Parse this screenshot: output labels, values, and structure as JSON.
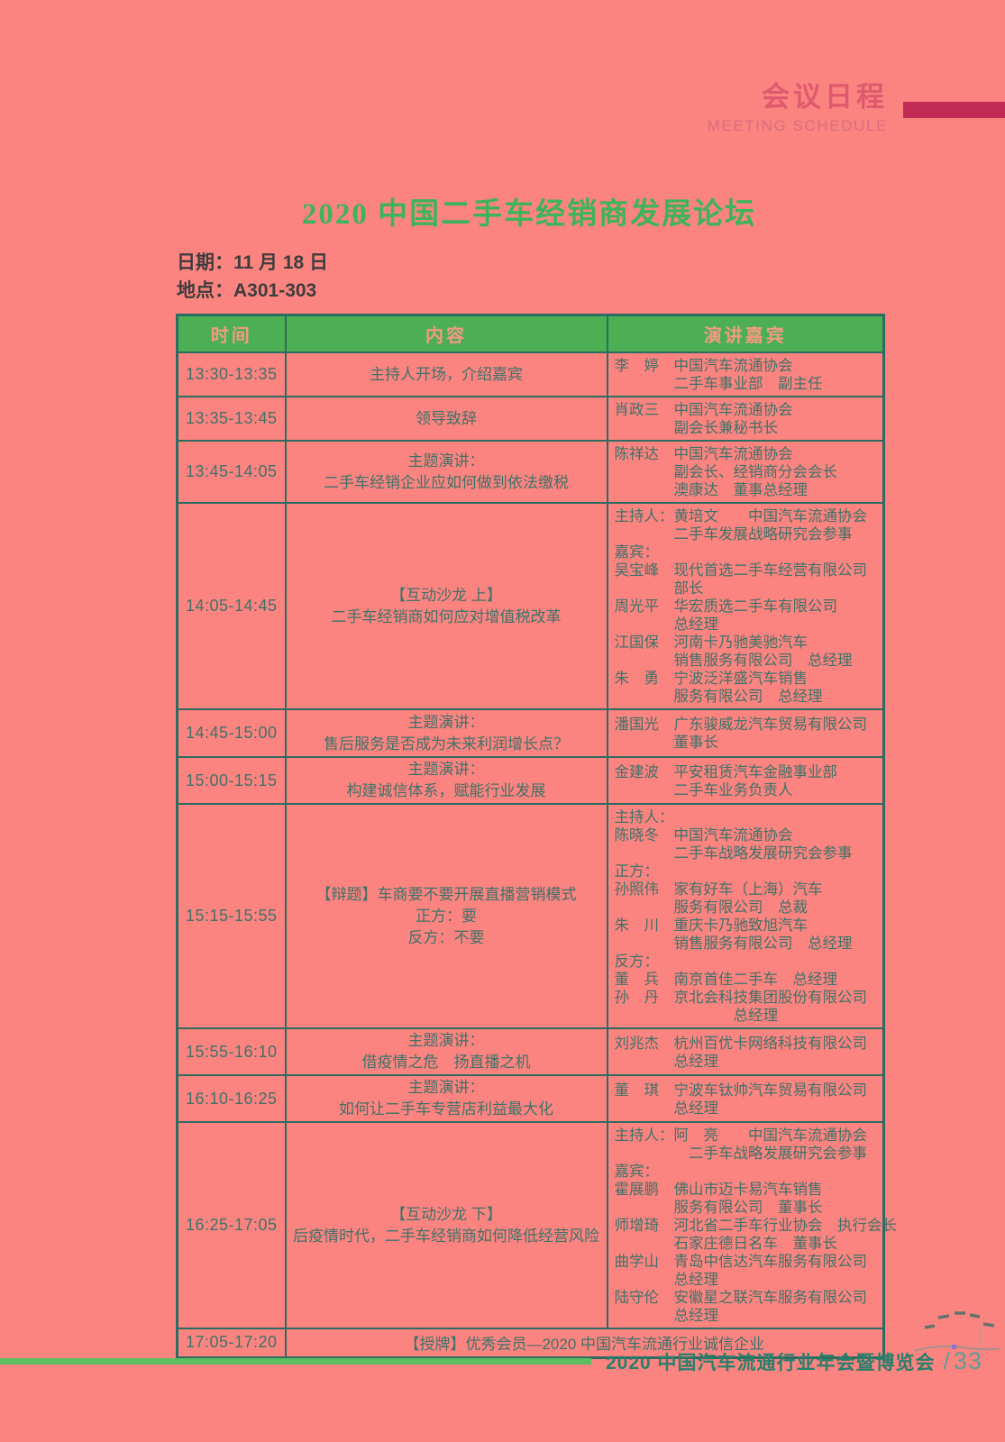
{
  "masthead": {
    "title_cn": "会议日程",
    "title_en": "MEETING SCHEDULE"
  },
  "forum": {
    "title": "2020 中国二手车经销商发展论坛",
    "date": "日期：11 月 18 日",
    "venue": "地点：A301-303"
  },
  "schedule": {
    "columns": [
      "时间",
      "内容",
      "演讲嘉宾"
    ],
    "rows": [
      {
        "time": "13:30-13:35",
        "content": [
          "主持人开场，介绍嘉宾"
        ],
        "speakers": [
          "李　婷　中国汽车流通协会",
          "　　　　二手车事业部　副主任"
        ]
      },
      {
        "time": "13:35-13:45",
        "content": [
          "领导致辞"
        ],
        "speakers": [
          "肖政三　中国汽车流通协会",
          "　　　　副会长兼秘书长"
        ]
      },
      {
        "time": "13:45-14:05",
        "content": [
          "主题演讲：",
          "二手车经销企业应如何做到依法缴税"
        ],
        "speakers": [
          "陈祥达　中国汽车流通协会",
          "　　　　副会长、经销商分会会长",
          "　　　　澳康达　董事总经理"
        ]
      },
      {
        "time": "14:05-14:45",
        "content": [
          "【互动沙龙 上】",
          "二手车经销商如何应对增值税改革"
        ],
        "speakers": [
          "主持人：黄培文　　中国汽车流通协会",
          "　　　　二手车发展战略研究会参事",
          "嘉宾：",
          "吴宝峰　现代首选二手车经营有限公司",
          "　　　　部长",
          "周光平　华宏质选二手车有限公司",
          "　　　　总经理",
          "江国保　河南卡乃驰美驰汽车",
          "　　　　销售服务有限公司　总经理",
          "朱　勇　宁波泛洋盛汽车销售",
          "　　　　服务有限公司　总经理"
        ]
      },
      {
        "time": "14:45-15:00",
        "content": [
          "主题演讲：",
          "售后服务是否成为未来利润增长点？"
        ],
        "speakers": [
          "潘国光　广东骏威龙汽车贸易有限公司",
          "　　　　董事长"
        ]
      },
      {
        "time": "15:00-15:15",
        "content": [
          "主题演讲：",
          "构建诚信体系，赋能行业发展"
        ],
        "speakers": [
          "金建波　平安租赁汽车金融事业部",
          "　　　　二手车业务负责人"
        ]
      },
      {
        "time": "15:15-15:55",
        "content": [
          "【辩题】车商要不要开展直播营销模式",
          "正方：要",
          "反方：不要"
        ],
        "speakers": [
          "主持人：",
          "陈晓冬　中国汽车流通协会",
          "　　　　二手车战略发展研究会参事",
          "正方：",
          "孙照伟　家有好车（上海）汽车",
          "　　　　服务有限公司　总裁",
          "朱　川　重庆卡乃驰致旭汽车",
          "　　　　销售服务有限公司　总经理",
          "反方：",
          "董　兵　南京首佳二手车　总经理",
          "孙　丹　京北会科技集团股份有限公司",
          "　　　　　　　　总经理"
        ]
      },
      {
        "time": "15:55-16:10",
        "content": [
          "主题演讲：",
          "借疫情之危　扬直播之机"
        ],
        "speakers": [
          "刘兆杰　杭州百优卡网络科技有限公司",
          "　　　　总经理"
        ]
      },
      {
        "time": "16:10-16:25",
        "content": [
          "主题演讲：",
          "如何让二手车专营店利益最大化"
        ],
        "speakers": [
          "董　琪　宁波车钛帅汽车贸易有限公司",
          "　　　　总经理"
        ]
      },
      {
        "time": "16:25-17:05",
        "content": [
          "【互动沙龙 下】",
          "后疫情时代，二手车经销商如何降低经营风险"
        ],
        "speakers": [
          "主持人：阿　亮　　中国汽车流通协会",
          "　　　　　二手车战略发展研究会参事",
          "嘉宾：",
          "霍展鹏　佛山市迈卡易汽车销售",
          "　　　　服务有限公司　董事长",
          "师增琦　河北省二手车行业协会　执行会长",
          "　　　　石家庄德日名车　董事长",
          "曲学山　青岛中信达汽车服务有限公司",
          "　　　　总经理",
          "陆守伦　安徽星之联汽车服务有限公司",
          "　　　　总经理"
        ]
      },
      {
        "time": "17:05-17:20",
        "award": "【授牌】优秀会员—2020 中国汽车流通行业诚信企业"
      }
    ]
  },
  "footer": {
    "brand": "2020 中国汽车流通行业年会暨博览会",
    "separator": "/",
    "page_number": "33"
  },
  "colors": {
    "background": "#fb8480",
    "table_header_green": "#4caf54",
    "table_border_teal": "#2e6b60",
    "body_text_teal": "#3f7269",
    "title_green": "#3eb35a",
    "masthead_pink": "#df5a6e",
    "masthead_bar_crimson": "#c22b56",
    "footer_line_green": "#5abf5e",
    "footer_text_teal": "#2a7e6c"
  }
}
